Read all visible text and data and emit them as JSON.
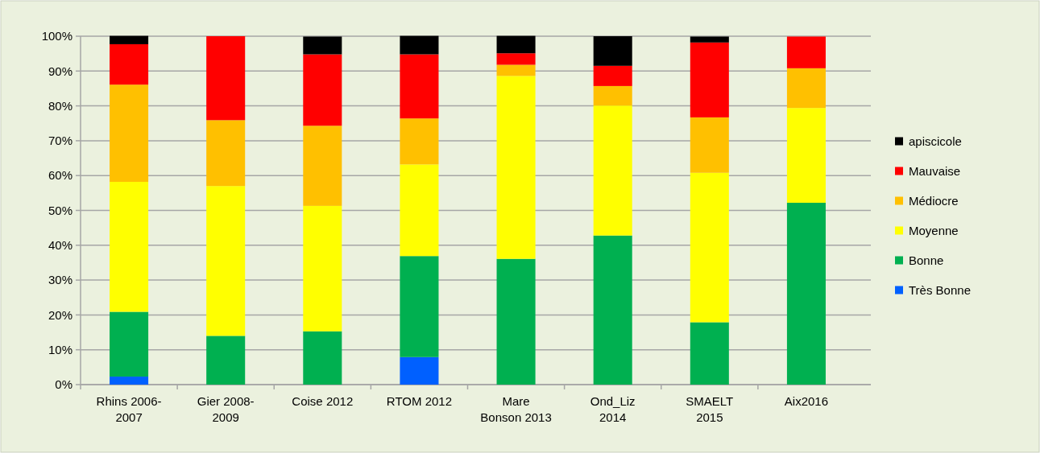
{
  "chart_data": {
    "type": "bar",
    "stacked": true,
    "categories": [
      "Rhins 2006-2007",
      "Gier 2008-2009",
      "Coise 2012",
      "RTOM 2012",
      "Mare Bonson 2013",
      "Ond_Liz 2014",
      "SMAELT 2015",
      "Aix2016"
    ],
    "series": [
      {
        "name": "Très Bonne",
        "color": "#0060ff",
        "values": [
          2.3,
          0,
          0,
          7.9,
          0,
          0,
          0,
          0
        ]
      },
      {
        "name": "Bonne",
        "color": "#00b050",
        "values": [
          18.6,
          14.0,
          15.3,
          29.0,
          36.1,
          42.8,
          17.9,
          52.2
        ]
      },
      {
        "name": "Moyenne",
        "color": "#ffff00",
        "values": [
          37.3,
          43.0,
          36.0,
          26.3,
          52.5,
          37.3,
          42.9,
          27.2
        ]
      },
      {
        "name": "Médiocre",
        "color": "#ffc000",
        "values": [
          27.9,
          18.9,
          23.0,
          13.2,
          3.2,
          5.6,
          15.9,
          11.4
        ]
      },
      {
        "name": "Mauvaise",
        "color": "#ff0000",
        "values": [
          11.6,
          24.1,
          20.5,
          18.4,
          3.3,
          5.8,
          21.5,
          9.1
        ]
      },
      {
        "name": "apiscicole",
        "color": "#000000",
        "values": [
          2.4,
          0,
          5.1,
          5.3,
          5.0,
          8.5,
          1.7,
          0
        ]
      }
    ],
    "ylim": [
      0,
      100
    ],
    "yticks": [
      {
        "value": 0,
        "label": "0%"
      },
      {
        "value": 10,
        "label": "10%"
      },
      {
        "value": 20,
        "label": "20%"
      },
      {
        "value": 30,
        "label": "30%"
      },
      {
        "value": 40,
        "label": "40%"
      },
      {
        "value": 50,
        "label": "50%"
      },
      {
        "value": 60,
        "label": "60%"
      },
      {
        "value": 70,
        "label": "70%"
      },
      {
        "value": 80,
        "label": "80%"
      },
      {
        "value": 90,
        "label": "90%"
      },
      {
        "value": 100,
        "label": "100%"
      }
    ],
    "grid": "y",
    "legend": "right"
  }
}
